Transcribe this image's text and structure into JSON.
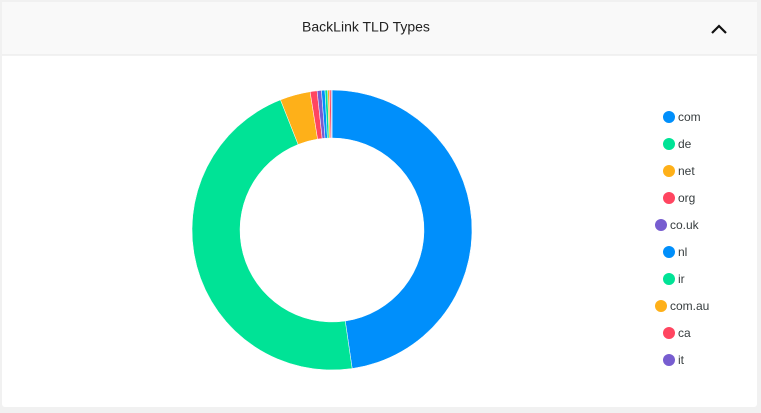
{
  "chart_data": {
    "type": "donut",
    "title": "BackLink TLD Types",
    "categories": [
      "com",
      "de",
      "net",
      "org",
      "co.uk",
      "nl",
      "ir",
      "com.au",
      "ca",
      "it"
    ],
    "values": [
      47.7,
      46.3,
      3.5,
      0.8,
      0.5,
      0.4,
      0.3,
      0.2,
      0.2,
      0.1
    ],
    "colors": [
      "#008ffb",
      "#00e396",
      "#feb019",
      "#ff4560",
      "#775dd0",
      "#008ffb",
      "#00e396",
      "#feb019",
      "#ff4560",
      "#775dd0"
    ],
    "legend": "right"
  }
}
